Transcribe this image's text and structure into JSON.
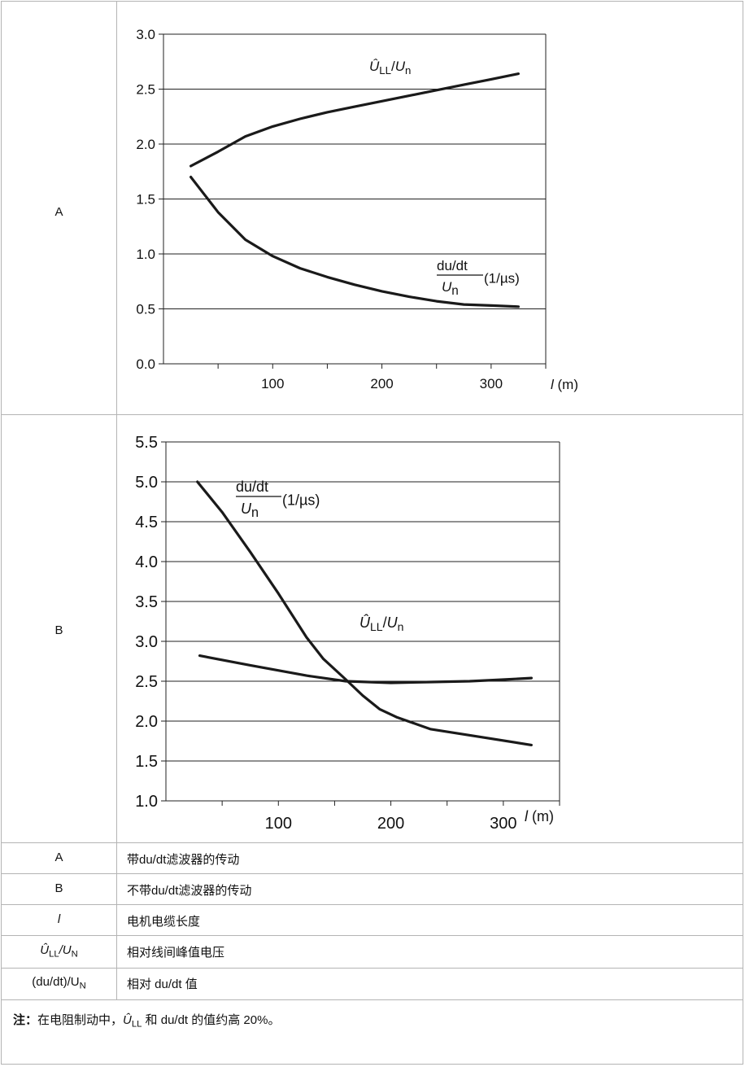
{
  "row_labels": {
    "a": "A",
    "b": "B"
  },
  "legend": [
    {
      "key": "A",
      "desc": "带du/dt滤波器的传动"
    },
    {
      "key": "B",
      "desc": "不带du/dt滤波器的传动"
    },
    {
      "key": "l",
      "desc": "电机电缆长度"
    },
    {
      "key_main": "Û",
      "key_sub": "LL",
      "key_tail": "/U",
      "key_sub2": "N",
      "desc": "相对线间峰值电压"
    },
    {
      "key_main": "(du/dt)/U",
      "key_sub": "N",
      "desc": "相对 du/dt 值"
    }
  ],
  "note": {
    "label": "注：",
    "pre": "在电阻制动中，",
    "sym": "Û",
    "sub": "LL",
    "post": " 和 du/dt 的值约高 20%。"
  },
  "chart_data": [
    {
      "type": "line",
      "panel": "A",
      "xlabel": "l (m)",
      "xlabel_italic": "l",
      "xlabel_unit": "(m)",
      "xlim": [
        0,
        350
      ],
      "ylim": [
        0,
        3.0
      ],
      "xticks": [
        100,
        200,
        300
      ],
      "xminor": [
        50,
        150,
        250,
        350
      ],
      "yticks": [
        0.0,
        0.5,
        1.0,
        1.5,
        2.0,
        2.5,
        3.0
      ],
      "ytick_labels": [
        "0.0",
        "0.5",
        "1.0",
        "1.5",
        "2.0",
        "2.5",
        "3.0"
      ],
      "grid": "horizontal",
      "series": [
        {
          "name": "ÛLL/Un",
          "x": [
            25,
            50,
            75,
            100,
            125,
            150,
            175,
            200,
            225,
            250,
            275,
            300,
            325
          ],
          "y": [
            1.8,
            1.93,
            2.07,
            2.16,
            2.23,
            2.29,
            2.34,
            2.39,
            2.44,
            2.49,
            2.54,
            2.59,
            2.64
          ]
        },
        {
          "name": "du/dt / Un (1/µs)",
          "x": [
            25,
            50,
            75,
            100,
            125,
            150,
            175,
            200,
            225,
            250,
            275,
            300,
            325
          ],
          "y": [
            1.7,
            1.38,
            1.13,
            0.98,
            0.87,
            0.79,
            0.72,
            0.66,
            0.61,
            0.57,
            0.54,
            0.53,
            0.52
          ]
        }
      ],
      "labels": {
        "u_main": "Û",
        "u_sub": "LL",
        "u_slash": "/",
        "u_main2": "U",
        "u_sub2": "n",
        "d_num": "du/dt",
        "d_den": "U",
        "d_den_sub": "n",
        "d_unit": "(1/µs)"
      }
    },
    {
      "type": "line",
      "panel": "B",
      "xlabel": "l (m)",
      "xlabel_italic": "l",
      "xlabel_unit": "(m)",
      "xlim": [
        0,
        350
      ],
      "ylim": [
        1.0,
        5.5
      ],
      "xticks": [
        100,
        200,
        300
      ],
      "xminor": [
        50,
        150,
        250,
        350
      ],
      "yticks": [
        1.0,
        1.5,
        2.0,
        2.5,
        3.0,
        3.5,
        4.0,
        4.5,
        5.0,
        5.5
      ],
      "ytick_labels": [
        "1.0",
        "1.5",
        "2.0",
        "2.5",
        "3.0",
        "3.5",
        "4.0",
        "4.5",
        "5.0",
        "5.5"
      ],
      "grid": "horizontal",
      "series": [
        {
          "name": "du/dt / Un (1/µs)",
          "x": [
            28,
            50,
            75,
            100,
            125,
            140,
            160,
            175,
            190,
            205,
            235,
            280,
            325
          ],
          "y": [
            5.0,
            4.62,
            4.12,
            3.6,
            3.05,
            2.78,
            2.52,
            2.32,
            2.15,
            2.05,
            1.9,
            1.8,
            1.7
          ]
        },
        {
          "name": "ÛLL/Un",
          "x": [
            30,
            75,
            125,
            160,
            200,
            235,
            270,
            300,
            325
          ],
          "y": [
            2.82,
            2.7,
            2.57,
            2.5,
            2.48,
            2.49,
            2.5,
            2.52,
            2.54
          ]
        }
      ],
      "labels": {
        "u_main": "Û",
        "u_sub": "LL",
        "u_slash": "/",
        "u_main2": "U",
        "u_sub2": "n",
        "d_num": "du/dt",
        "d_den": "U",
        "d_den_sub": "n",
        "d_unit": "(1/µs)"
      }
    }
  ]
}
